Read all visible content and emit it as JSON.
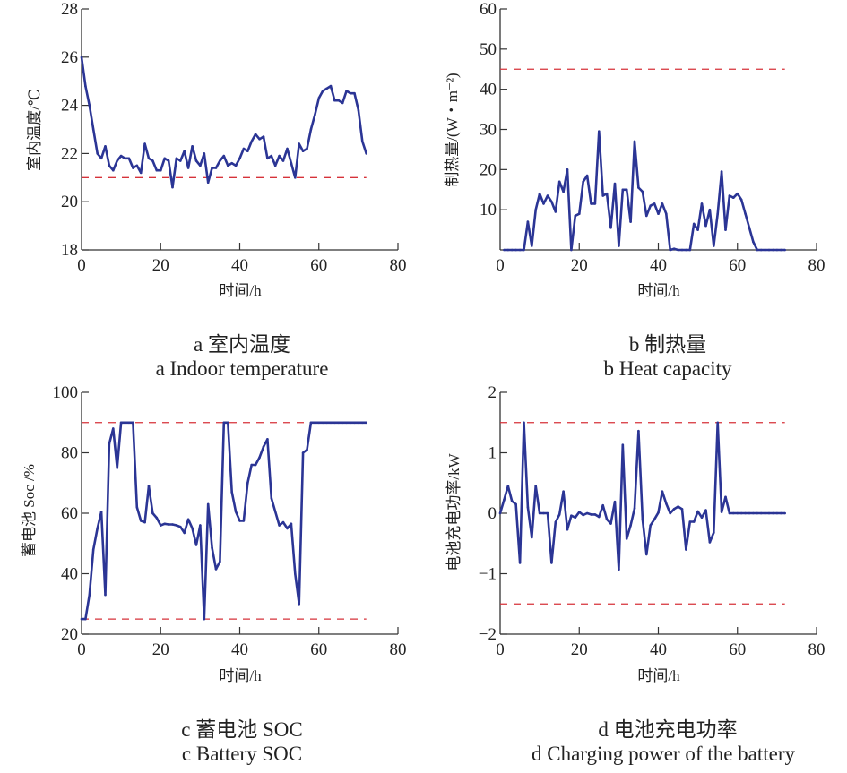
{
  "colors": {
    "series": "#2b3595",
    "limit": "#d6323a",
    "axis": "#333333"
  },
  "captions": {
    "a_zh": "a  室内温度",
    "a_en": "a  Indoor temperature",
    "b_zh": "b  制热量",
    "b_en": "b  Heat capacity",
    "c_zh": "c  蓄电池 SOC",
    "c_en": "c  Battery SOC",
    "d_zh": "d  电池充电功率",
    "d_en": "d  Charging power of the battery"
  },
  "chart_data": [
    {
      "id": "a",
      "type": "line",
      "title": "室内温度 / Indoor temperature",
      "xlabel": "时间/h",
      "ylabel": "室内温度/℃",
      "xlim": [
        0,
        80
      ],
      "ylim": [
        18,
        28
      ],
      "xticks": [
        "0",
        "20",
        "40",
        "60",
        "80"
      ],
      "yticks": [
        "18",
        "20",
        "22",
        "24",
        "26",
        "28"
      ],
      "ytick_values": [
        18,
        20,
        22,
        24,
        26,
        28
      ],
      "limits": [
        21
      ],
      "limit_range": [
        0,
        72
      ],
      "x": [
        0,
        1,
        2,
        3,
        4,
        5,
        6,
        7,
        8,
        9,
        10,
        11,
        12,
        13,
        14,
        15,
        16,
        17,
        18,
        19,
        20,
        21,
        22,
        23,
        24,
        25,
        26,
        27,
        28,
        29,
        30,
        31,
        32,
        33,
        34,
        35,
        36,
        37,
        38,
        39,
        40,
        41,
        42,
        43,
        44,
        45,
        46,
        47,
        48,
        49,
        50,
        51,
        52,
        53,
        54,
        55,
        56,
        57,
        58,
        59,
        60,
        61,
        62,
        63,
        64,
        65,
        66,
        67,
        68,
        69,
        70,
        71,
        72
      ],
      "y": [
        26.0,
        24.8,
        24.0,
        23.0,
        22.0,
        21.8,
        22.3,
        21.5,
        21.3,
        21.7,
        21.9,
        21.8,
        21.8,
        21.4,
        21.5,
        21.2,
        22.4,
        21.8,
        21.7,
        21.3,
        21.3,
        21.8,
        21.7,
        20.6,
        21.8,
        21.7,
        22.1,
        21.4,
        22.3,
        21.7,
        21.5,
        22.0,
        20.8,
        21.4,
        21.4,
        21.7,
        21.9,
        21.5,
        21.6,
        21.5,
        21.8,
        22.2,
        22.1,
        22.5,
        22.8,
        22.6,
        22.7,
        21.8,
        21.9,
        21.5,
        21.9,
        21.7,
        22.2,
        21.6,
        21.0,
        22.4,
        22.1,
        22.2,
        23.0,
        23.6,
        24.3,
        24.6,
        24.7,
        24.8,
        24.2,
        24.2,
        24.1,
        24.6,
        24.5,
        24.5,
        23.8,
        22.5,
        22.0
      ]
    },
    {
      "id": "b",
      "type": "line",
      "title": "制热量 / Heat capacity",
      "xlabel": "时间/h",
      "ylabel": "制热量/(W・m⁻²)",
      "xlim": [
        0,
        80
      ],
      "ylim": [
        0,
        60
      ],
      "xticks": [
        "0",
        "20",
        "40",
        "60",
        "80"
      ],
      "yticks": [
        "10",
        "20",
        "30",
        "40",
        "50",
        "60"
      ],
      "ytick_values": [
        10,
        20,
        30,
        40,
        50,
        60
      ],
      "limits": [
        45
      ],
      "limit_range": [
        0,
        72
      ],
      "x": [
        1,
        2,
        3,
        4,
        5,
        6,
        7,
        8,
        9,
        10,
        11,
        12,
        13,
        14,
        15,
        16,
        17,
        18,
        19,
        20,
        21,
        22,
        23,
        24,
        25,
        26,
        27,
        28,
        29,
        30,
        31,
        32,
        33,
        34,
        35,
        36,
        37,
        38,
        39,
        40,
        41,
        42,
        43,
        44,
        45,
        46,
        47,
        48,
        49,
        50,
        51,
        52,
        53,
        54,
        55,
        56,
        57,
        58,
        59,
        60,
        61,
        62,
        63,
        64,
        65,
        66,
        67,
        68,
        69,
        70,
        71,
        72
      ],
      "y": [
        0,
        0,
        0,
        0,
        0,
        0,
        7,
        1,
        10,
        14,
        11.5,
        13.5,
        12,
        9.5,
        17,
        14.5,
        20,
        0,
        8.5,
        9,
        17,
        18.5,
        11.5,
        11.5,
        29.5,
        13.5,
        14,
        5.5,
        16.5,
        1,
        15,
        15,
        7,
        27,
        15.5,
        14.5,
        8.5,
        11,
        11.5,
        9,
        11.5,
        9,
        0,
        0.3,
        0,
        0,
        0,
        0,
        6.5,
        5,
        11.5,
        6,
        10,
        1,
        9,
        19.5,
        5,
        13.5,
        13,
        14,
        12.5,
        9,
        5.5,
        2,
        0,
        0,
        0,
        0,
        0,
        0,
        0,
        0
      ]
    },
    {
      "id": "c",
      "type": "line",
      "title": "蓄电池 SOC / Battery SOC",
      "xlabel": "时间/h",
      "ylabel": "蓄电池 Soc /%",
      "xlim": [
        0,
        80
      ],
      "ylim": [
        20,
        100
      ],
      "xticks": [
        "0",
        "20",
        "40",
        "60",
        "80"
      ],
      "yticks": [
        "20",
        "40",
        "60",
        "80",
        "100"
      ],
      "ytick_values": [
        20,
        40,
        60,
        80,
        100
      ],
      "limits": [
        90,
        25
      ],
      "limit_range": [
        0,
        72
      ],
      "x": [
        0,
        1,
        2,
        3,
        4,
        5,
        6,
        7,
        8,
        9,
        10,
        11,
        12,
        13,
        14,
        15,
        16,
        17,
        18,
        19,
        20,
        21,
        22,
        23,
        24,
        25,
        26,
        27,
        28,
        29,
        30,
        31,
        32,
        33,
        34,
        35,
        36,
        37,
        38,
        39,
        40,
        41,
        42,
        43,
        44,
        45,
        46,
        47,
        48,
        49,
        50,
        51,
        52,
        53,
        54,
        55,
        56,
        57,
        58,
        59,
        60,
        61,
        62,
        63,
        64,
        65,
        66,
        67,
        68,
        69,
        70,
        71,
        72
      ],
      "y": [
        25,
        25,
        33,
        48,
        55,
        60.5,
        33,
        83,
        88,
        75,
        90,
        90,
        90,
        90,
        62,
        57.5,
        57,
        69,
        60,
        58.5,
        56,
        56.5,
        56.3,
        56.3,
        56,
        55.5,
        53.5,
        58,
        55,
        49.5,
        56,
        25,
        63,
        48.5,
        41.5,
        44,
        90,
        90,
        67,
        60.5,
        57.5,
        57.5,
        70,
        76,
        76,
        78.5,
        82,
        84.5,
        65,
        60.5,
        56,
        57,
        55,
        56.5,
        40,
        30,
        80,
        81,
        90,
        90,
        90,
        90,
        90,
        90,
        90,
        90,
        90,
        90,
        90,
        90,
        90,
        90,
        90
      ]
    },
    {
      "id": "d",
      "type": "line",
      "title": "电池充电功率 / Charging power of the battery",
      "xlabel": "时间/h",
      "ylabel": "电池充电功率/kW",
      "xlim": [
        0,
        80
      ],
      "ylim": [
        -2,
        2
      ],
      "xticks": [
        "0",
        "20",
        "40",
        "60",
        "80"
      ],
      "yticks": [
        "−2",
        "−1",
        "0",
        "1",
        "2"
      ],
      "ytick_values": [
        -2,
        -1,
        0,
        1,
        2
      ],
      "limits": [
        1.5,
        -1.5
      ],
      "limit_range": [
        0,
        72
      ],
      "x": [
        0,
        1,
        2,
        3,
        4,
        5,
        6,
        7,
        8,
        9,
        10,
        11,
        12,
        13,
        14,
        15,
        16,
        17,
        18,
        19,
        20,
        21,
        22,
        23,
        24,
        25,
        26,
        27,
        28,
        29,
        30,
        31,
        32,
        33,
        34,
        35,
        36,
        37,
        38,
        39,
        40,
        41,
        42,
        43,
        44,
        45,
        46,
        47,
        48,
        49,
        50,
        51,
        52,
        53,
        54,
        55,
        56,
        57,
        58,
        59,
        60,
        61,
        62,
        63,
        64,
        65,
        66,
        67,
        68,
        69,
        70,
        71,
        72
      ],
      "y": [
        0,
        0.22,
        0.45,
        0.2,
        0.15,
        -0.82,
        1.5,
        0.1,
        -0.4,
        0.45,
        0,
        0,
        0,
        -0.82,
        -0.15,
        -0.02,
        0.36,
        -0.27,
        -0.04,
        -0.07,
        0.02,
        -0.03,
        0,
        -0.02,
        -0.02,
        -0.06,
        0.13,
        -0.1,
        -0.17,
        0.19,
        -0.93,
        1.13,
        -0.42,
        -0.2,
        0.08,
        1.36,
        -0.1,
        -0.68,
        -0.2,
        -0.1,
        0.01,
        0.36,
        0.16,
        0,
        0.07,
        0.11,
        0.07,
        -0.6,
        -0.14,
        -0.14,
        0.03,
        -0.07,
        0.05,
        -0.48,
        -0.32,
        1.5,
        0.02,
        0.27,
        0,
        0,
        0,
        0,
        0,
        0,
        0,
        0,
        0,
        0,
        0,
        0,
        0,
        0,
        0
      ]
    }
  ]
}
